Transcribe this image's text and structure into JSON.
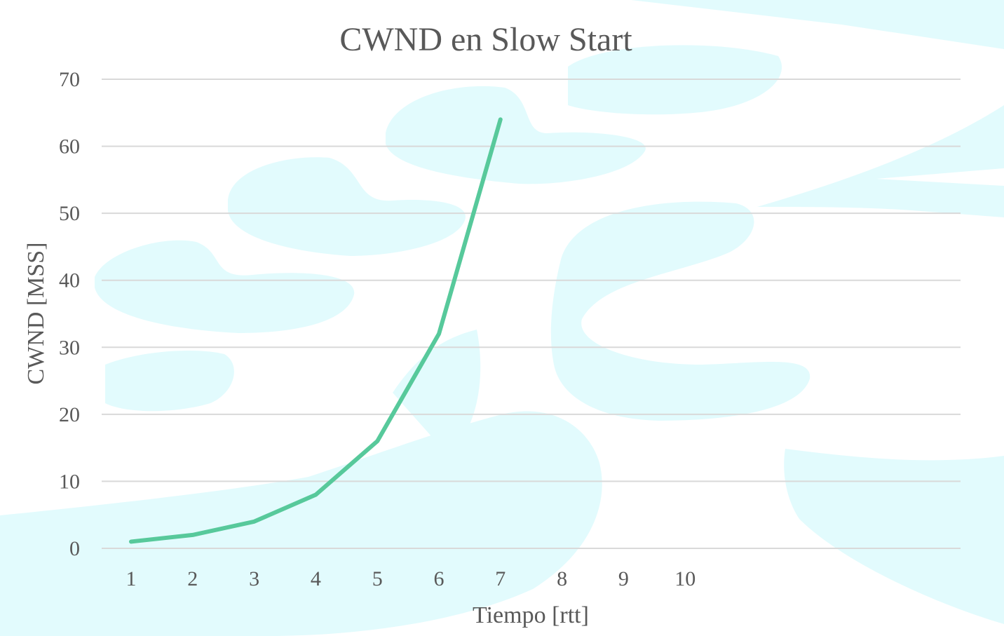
{
  "chart_data": {
    "type": "line",
    "title": "CWND en Slow Start",
    "xlabel": "Tiempo [rtt]",
    "ylabel": "CWND [MSS]",
    "categories": [
      "1",
      "2",
      "3",
      "4",
      "5",
      "6",
      "7",
      "8",
      "9",
      "10"
    ],
    "series": [
      {
        "values": [
          1,
          2,
          4,
          8,
          16,
          32,
          64,
          null,
          null,
          null
        ]
      }
    ],
    "ylim": [
      0,
      70
    ],
    "yticks": [
      0,
      10,
      20,
      30,
      40,
      50,
      60,
      70
    ],
    "grid": true,
    "legend": "none"
  },
  "colors": {
    "series": "#57c99b",
    "background_shapes": "#e2fbfd",
    "text": "#595959",
    "grid": "#d9d9d9"
  }
}
